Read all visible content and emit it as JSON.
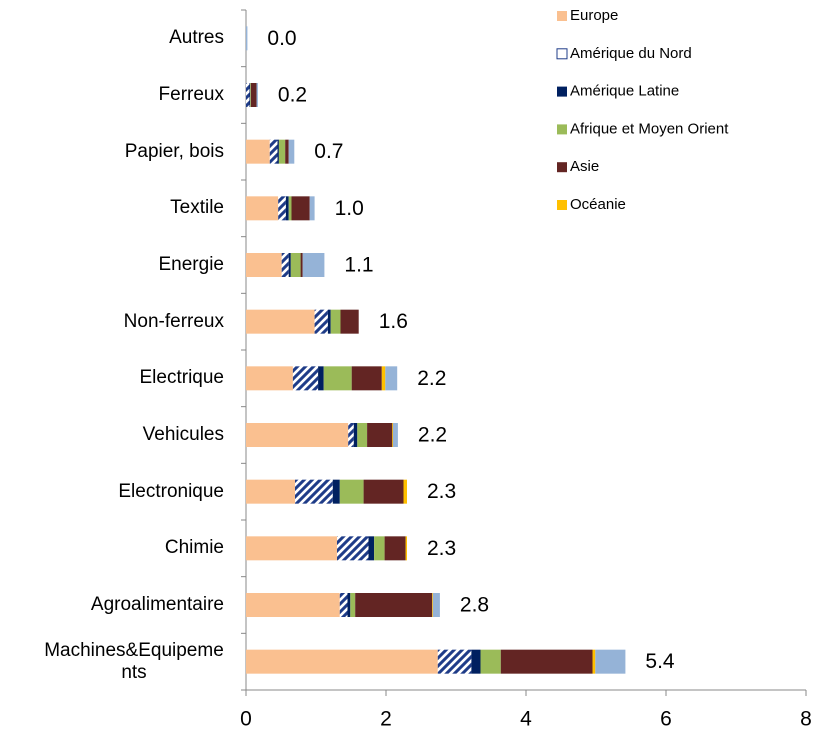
{
  "chart_data": {
    "type": "stacked-barh",
    "categories": [
      "Autres",
      "Ferreux",
      "Papier, bois",
      "Textile",
      "Energie",
      "Non-ferreux",
      "Electrique",
      "Vehicules",
      "Electronique",
      "Chimie",
      "Agroalimentaire",
      "Machines&Equipements"
    ],
    "series": [
      {
        "name": "Europe",
        "color": "#fac090",
        "values": [
          0,
          0,
          0.34,
          0.46,
          0.51,
          0.98,
          0.67,
          1.46,
          0.7,
          1.3,
          1.34,
          2.74
        ]
      },
      {
        "name": "Amérique du Nord",
        "color": "#1f3c88",
        "pattern": "hatch",
        "values": [
          0,
          0.05,
          0.11,
          0.11,
          0.1,
          0.19,
          0.36,
          0.08,
          0.54,
          0.45,
          0.11,
          0.48
        ]
      },
      {
        "name": "Amérique Latine",
        "color": "#002060",
        "values": [
          0,
          0.01,
          0.02,
          0.04,
          0.03,
          0.04,
          0.08,
          0.05,
          0.1,
          0.08,
          0.04,
          0.13
        ]
      },
      {
        "name": "Afrique et Moyen Orient",
        "color": "#9bbb59",
        "values": [
          0,
          0.01,
          0.09,
          0.04,
          0.14,
          0.14,
          0.4,
          0.14,
          0.34,
          0.15,
          0.07,
          0.29
        ]
      },
      {
        "name": "Asie",
        "color": "#632523",
        "values": [
          0,
          0.08,
          0.05,
          0.26,
          0.03,
          0.26,
          0.43,
          0.36,
          0.57,
          0.3,
          1.1,
          1.31
        ]
      },
      {
        "name": "Océanie",
        "color": "#ffc000",
        "values": [
          0,
          0,
          0,
          0,
          0,
          0,
          0.05,
          0.01,
          0.05,
          0.02,
          0.01,
          0.04
        ]
      },
      {
        "color": "#95b3d7",
        "values": [
          0.02,
          0.02,
          0.08,
          0.07,
          0.31,
          0,
          0.17,
          0.07,
          0,
          0,
          0.1,
          0.43
        ]
      }
    ],
    "totals": [
      0,
      0.2,
      0.7,
      1,
      1.1,
      1.6,
      2.2,
      2.2,
      2.3,
      2.3,
      2.8,
      5.4
    ],
    "total_labels": [
      "0.0",
      "0.2",
      "0.7",
      "1.0",
      "1.1",
      "1.6",
      "2.2",
      "2.2",
      "2.3",
      "2.3",
      "2.8",
      "5.4"
    ],
    "xlim": [
      0,
      8
    ],
    "xticks": [
      0,
      2,
      4,
      6,
      8
    ]
  }
}
